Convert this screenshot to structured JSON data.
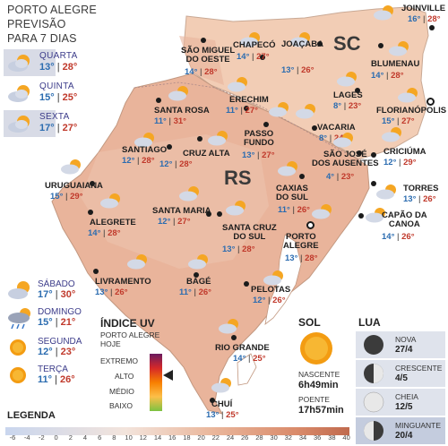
{
  "header": {
    "line1": "PORTO ALEGRE",
    "line2": "PREVISÃO",
    "line3": "PARA 7 DIAS"
  },
  "forecast": [
    {
      "day": "QUARTA",
      "min": "13°",
      "max": "28°",
      "icon": "sun-cloud-icon"
    },
    {
      "day": "QUINTA",
      "min": "15°",
      "max": "25°",
      "icon": "sun-cloud-icon"
    },
    {
      "day": "SEXTA",
      "min": "17°",
      "max": "27°",
      "icon": "sun-cloud-icon"
    },
    {
      "day": "SÁBADO",
      "min": "17°",
      "max": "30°",
      "icon": "sun-cloud-icon"
    },
    {
      "day": "DOMINGO",
      "min": "15°",
      "max": "21°",
      "icon": "rain-icon"
    },
    {
      "day": "SEGUNDA",
      "min": "12°",
      "max": "23°",
      "icon": "sun-icon"
    },
    {
      "day": "TERÇA",
      "min": "11°",
      "max": "26°",
      "icon": "sun-icon"
    }
  ],
  "states": {
    "sc": "SC",
    "rs": "RS"
  },
  "cities": [
    {
      "name": "JOINVILLE",
      "min": "16°",
      "max": "28°"
    },
    {
      "name": "SÃO MIGUEL\nDO OESTE",
      "min": "14°",
      "max": "28°"
    },
    {
      "name": "CHAPECÓ",
      "min": "14°",
      "max": "27°"
    },
    {
      "name": "JOAÇABA",
      "min": "13°",
      "max": "26°"
    },
    {
      "name": "BLUMENAU",
      "min": "14°",
      "max": "28°"
    },
    {
      "name": "LAGES",
      "min": "8°",
      "max": "23°"
    },
    {
      "name": "FLORIANÓPOLIS",
      "min": "15°",
      "max": "27°"
    },
    {
      "name": "SANTA ROSA",
      "min": "11°",
      "max": "31°"
    },
    {
      "name": "ERECHIM",
      "min": "11°",
      "max": "27°"
    },
    {
      "name": "VACARIA",
      "min": "8°",
      "max": "24°"
    },
    {
      "name": "PASSO\nFUNDO",
      "min": "13°",
      "max": "27°"
    },
    {
      "name": "SÃO JOSÉ\nDOS AUSENTES",
      "min": "4°",
      "max": "23°"
    },
    {
      "name": "CRICIÚMA",
      "min": "12°",
      "max": "29°"
    },
    {
      "name": "SANTIAGO",
      "min": "12°",
      "max": "28°"
    },
    {
      "name": "CRUZ ALTA",
      "min": "12°",
      "max": "28°"
    },
    {
      "name": "TORRES",
      "min": "13°",
      "max": "26°"
    },
    {
      "name": "URUGUAIANA",
      "min": "15°",
      "max": "29°"
    },
    {
      "name": "CAXIAS\nDO SUL",
      "min": "11°",
      "max": "26°"
    },
    {
      "name": "SANTA MARIA",
      "min": "12°",
      "max": "27°"
    },
    {
      "name": "ALEGRETE",
      "min": "14°",
      "max": "28°"
    },
    {
      "name": "CAPÃO DA\nCANOA",
      "min": "14°",
      "max": "26°"
    },
    {
      "name": "SANTA CRUZ\nDO SUL",
      "min": "13°",
      "max": "28°"
    },
    {
      "name": "PORTO\nALEGRE",
      "min": "13°",
      "max": "28°"
    },
    {
      "name": "LIVRAMENTO",
      "min": "13°",
      "max": "26°"
    },
    {
      "name": "BAGÉ",
      "min": "11°",
      "max": "26°"
    },
    {
      "name": "PELOTAS",
      "min": "12°",
      "max": "26°"
    },
    {
      "name": "RIO GRANDE",
      "min": "14°",
      "max": "25°"
    },
    {
      "name": "CHUÍ",
      "min": "13°",
      "max": "25°"
    }
  ],
  "uv": {
    "title": "ÍNDICE UV",
    "city": "PORTO ALEGRE",
    "when": "HOJE",
    "levels": [
      "EXTREMO",
      "ALTO",
      "MÉDIO",
      "BAIXO"
    ]
  },
  "sun": {
    "title": "SOL",
    "rise_label": "NASCENTE",
    "rise": "6h49min",
    "set_label": "POENTE",
    "set": "17h57min"
  },
  "moon": {
    "title": "LUA",
    "phases": [
      {
        "name": "NOVA",
        "date": "27/4"
      },
      {
        "name": "CRESCENTE",
        "date": "4/5"
      },
      {
        "name": "CHEIA",
        "date": "12/5"
      },
      {
        "name": "MINGUANTE",
        "date": "20/4"
      }
    ]
  },
  "legend": {
    "title": "LEGENDA",
    "ticks": [
      "-6",
      "-4",
      "-2",
      "0",
      "2",
      "4",
      "6",
      "8",
      "10",
      "12",
      "14",
      "16",
      "18",
      "20",
      "22",
      "24",
      "26",
      "28",
      "30",
      "32",
      "34",
      "36",
      "38",
      "40"
    ]
  },
  "colors": {
    "min": "#2b6cb0",
    "max": "#c0392b",
    "map_rs": "#e8b59a",
    "map_sc": "#f1cdb4",
    "water": "#ffffff"
  }
}
